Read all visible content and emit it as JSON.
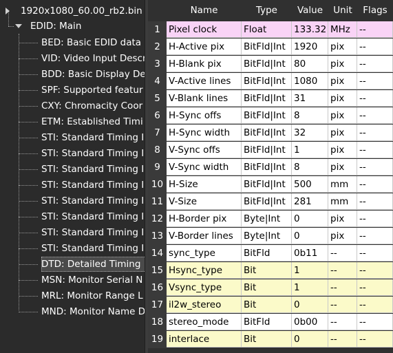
{
  "tree": {
    "root_label": "1920x1080_60.00_rb2.bin",
    "main_label": "EDID: Main",
    "children": [
      "BED: Basic EDID data",
      "VID: Video Input Descr",
      "BDD: Basic Display De",
      "SPF: Supported featur",
      "CXY: Chromacity Coor",
      "ETM: Established Timi",
      "STI: Standard Timing I",
      "STI: Standard Timing I",
      "STI: Standard Timing I",
      "STI: Standard Timing I",
      "STI: Standard Timing I",
      "STI: Standard Timing I",
      "STI: Standard Timing I",
      "STI: Standard Timing I",
      "DTD: Detailed Timing",
      "MSN: Monitor Serial N",
      "MRL: Monitor Range L",
      "MND: Monitor Name D"
    ],
    "selected_index": 14
  },
  "table": {
    "headers": [
      "Name",
      "Type",
      "Value",
      "Unit",
      "Flags"
    ],
    "rows": [
      {
        "num": "1",
        "name": "Pixel clock",
        "type": "Float",
        "value": "133.32",
        "unit": "MHz",
        "flags": "--",
        "highlight": "pink"
      },
      {
        "num": "2",
        "name": "H-Active pix",
        "type": "BitFld|Int",
        "value": "1920",
        "unit": "pix",
        "flags": "--",
        "highlight": "none"
      },
      {
        "num": "3",
        "name": "H-Blank pix",
        "type": "BitFld|Int",
        "value": "80",
        "unit": "pix",
        "flags": "--",
        "highlight": "none"
      },
      {
        "num": "4",
        "name": "V-Active lines",
        "type": "BitFld|Int",
        "value": "1080",
        "unit": "pix",
        "flags": "--",
        "highlight": "none"
      },
      {
        "num": "5",
        "name": "V-Blank lines",
        "type": "BitFld|Int",
        "value": "31",
        "unit": "pix",
        "flags": "--",
        "highlight": "none"
      },
      {
        "num": "6",
        "name": "H-Sync offs",
        "type": "BitFld|Int",
        "value": "8",
        "unit": "pix",
        "flags": "--",
        "highlight": "none"
      },
      {
        "num": "7",
        "name": "H-Sync width",
        "type": "BitFld|Int",
        "value": "32",
        "unit": "pix",
        "flags": "--",
        "highlight": "none"
      },
      {
        "num": "8",
        "name": "V-Sync offs",
        "type": "BitFld|Int",
        "value": "1",
        "unit": "pix",
        "flags": "--",
        "highlight": "none"
      },
      {
        "num": "9",
        "name": "V-Sync width",
        "type": "BitFld|Int",
        "value": "8",
        "unit": "pix",
        "flags": "--",
        "highlight": "none"
      },
      {
        "num": "10",
        "name": "H-Size",
        "type": "BitFld|Int",
        "value": "500",
        "unit": "mm",
        "flags": "--",
        "highlight": "none"
      },
      {
        "num": "11",
        "name": "V-Size",
        "type": "BitFld|Int",
        "value": "281",
        "unit": "mm",
        "flags": "--",
        "highlight": "none"
      },
      {
        "num": "12",
        "name": "H-Border pix",
        "type": "Byte|Int",
        "value": "0",
        "unit": "pix",
        "flags": "--",
        "highlight": "none"
      },
      {
        "num": "13",
        "name": "V-Border lines",
        "type": "Byte|Int",
        "value": "0",
        "unit": "pix",
        "flags": "--",
        "highlight": "none"
      },
      {
        "num": "14",
        "name": "sync_type",
        "type": "BitFld",
        "value": "0b11",
        "unit": "--",
        "flags": "--",
        "highlight": "none"
      },
      {
        "num": "15",
        "name": "Hsync_type",
        "type": "Bit",
        "value": "1",
        "unit": "--",
        "flags": "--",
        "highlight": "yellow"
      },
      {
        "num": "16",
        "name": "Vsync_type",
        "type": "Bit",
        "value": "1",
        "unit": "--",
        "flags": "--",
        "highlight": "yellow"
      },
      {
        "num": "17",
        "name": "il2w_stereo",
        "type": "Bit",
        "value": "0",
        "unit": "--",
        "flags": "--",
        "highlight": "yellow"
      },
      {
        "num": "18",
        "name": "stereo_mode",
        "type": "BitFld",
        "value": "0b00",
        "unit": "--",
        "flags": "--",
        "highlight": "none"
      },
      {
        "num": "19",
        "name": "interlace",
        "type": "Bit",
        "value": "0",
        "unit": "--",
        "flags": "--",
        "highlight": "yellow"
      }
    ]
  },
  "colors": {
    "background": "#2b2b2b",
    "pink_row": "#f9d3f6",
    "yellow_row": "#fbfac9"
  }
}
